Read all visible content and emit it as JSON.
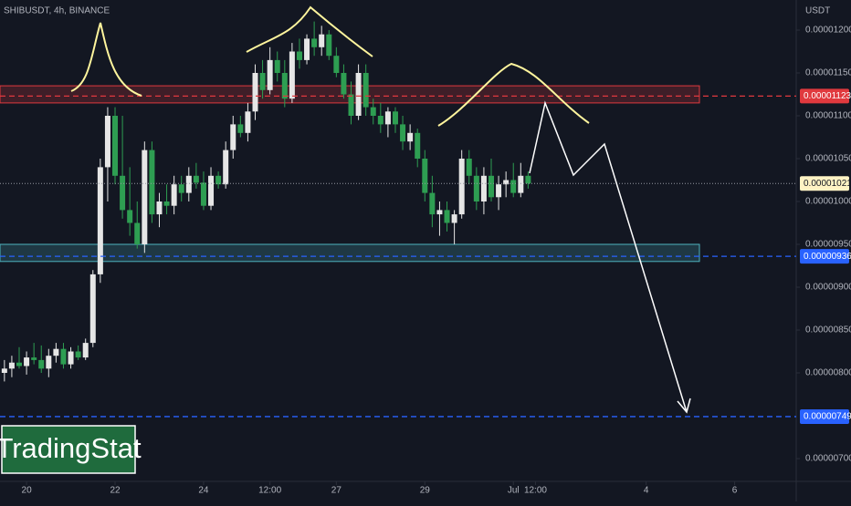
{
  "chart_data": {
    "type": "candlestick",
    "title": "SHIBUSDT, 4h, BINANCE",
    "y_unit": "USDT",
    "watermark": "TradingStat",
    "up_color": "#e6e6e6",
    "down_color": "#2e9e52",
    "xlim": [
      -3.6,
      104.1
    ],
    "xticks": [
      {
        "value": 0,
        "label": "20"
      },
      {
        "value": 12,
        "label": "22"
      },
      {
        "value": 24,
        "label": "24"
      },
      {
        "value": 33,
        "label": "12:00"
      },
      {
        "value": 42,
        "label": "27"
      },
      {
        "value": 54,
        "label": "29"
      },
      {
        "value": 66,
        "label": "Jul"
      },
      {
        "value": 69,
        "label": "12:00"
      },
      {
        "value": 84,
        "label": "4"
      },
      {
        "value": 96,
        "label": "6"
      }
    ],
    "ylim": [
      6.766e-06,
      1.2351e-05
    ],
    "yticks": [
      {
        "value": 1.2e-05,
        "label": "0.00001200"
      },
      {
        "value": 1.15e-05,
        "label": "0.00001150"
      },
      {
        "value": 1.1e-05,
        "label": "0.00001100"
      },
      {
        "value": 1.05e-05,
        "label": "0.00001050"
      },
      {
        "value": 1e-05,
        "label": "0.00001000"
      },
      {
        "value": 9.5e-06,
        "label": "0.00000950"
      },
      {
        "value": 9e-06,
        "label": "0.00000900"
      },
      {
        "value": 8.5e-06,
        "label": "0.00000850"
      },
      {
        "value": 8e-06,
        "label": "0.00000800"
      },
      {
        "value": 7e-06,
        "label": "0.00000700"
      }
    ],
    "x": [
      -3,
      -2,
      -1,
      0,
      1,
      2,
      3,
      4,
      5,
      6,
      7,
      8,
      9,
      10,
      11,
      12,
      13,
      14,
      15,
      16,
      17,
      18,
      19,
      20,
      21,
      22,
      23,
      24,
      25,
      26,
      27,
      28,
      29,
      30,
      31,
      32,
      33,
      34,
      35,
      36,
      37,
      38,
      39,
      40,
      41,
      42,
      43,
      44,
      45,
      46,
      47,
      48,
      49,
      50,
      51,
      52,
      53,
      54,
      55,
      56,
      57,
      58,
      59,
      60,
      61,
      62,
      63,
      64,
      65,
      66,
      67,
      68
    ],
    "open": [
      8e-06,
      8.05e-06,
      8.12e-06,
      8.08e-06,
      8.18e-06,
      8.15e-06,
      8.05e-06,
      8.2e-06,
      8.28e-06,
      8.1e-06,
      8.25e-06,
      8.18e-06,
      8.35e-06,
      9.15e-06,
      1.04e-05,
      1.1e-05,
      1.03e-05,
      9.9e-06,
      9.75e-06,
      9.5e-06,
      1.06e-05,
      9.85e-06,
      1e-05,
      9.95e-06,
      1.02e-05,
      1.01e-05,
      1.03e-05,
      1.022e-05,
      9.95e-06,
      1.03e-05,
      1.02e-05,
      1.06e-05,
      1.09e-05,
      1.08e-05,
      1.105e-05,
      1.15e-05,
      1.13e-05,
      1.165e-05,
      1.15e-05,
      1.12e-05,
      1.175e-05,
      1.165e-05,
      1.19e-05,
      1.18e-05,
      1.195e-05,
      1.17e-05,
      1.15e-05,
      1.125e-05,
      1.1e-05,
      1.15e-05,
      1.11e-05,
      1.1e-05,
      1.09e-05,
      1.105e-05,
      1.09e-05,
      1.07e-05,
      1.08e-05,
      1.05e-05,
      1.01e-05,
      9.85e-06,
      9.9e-06,
      9.75e-06,
      9.85e-06,
      1.05e-05,
      1.03e-05,
      1e-05,
      1.03e-05,
      1.005e-05,
      1.02e-05,
      1.025e-05,
      1.01e-05,
      1.03e-05
    ],
    "high": [
      8.15e-06,
      8.2e-06,
      8.3e-06,
      8.25e-06,
      8.35e-06,
      8.32e-06,
      8.28e-06,
      8.35e-06,
      8.35e-06,
      8.3e-06,
      8.32e-06,
      8.4e-06,
      9.2e-06,
      1.05e-05,
      1.11e-05,
      1.11e-05,
      1.1e-05,
      1.04e-05,
      1e-05,
      1.07e-05,
      1.07e-05,
      1.01e-05,
      1.02e-05,
      1.03e-05,
      1.03e-05,
      1.04e-05,
      1.045e-05,
      1.035e-05,
      1.04e-05,
      1.035e-05,
      1.07e-05,
      1.1e-05,
      1.1e-05,
      1.115e-05,
      1.16e-05,
      1.165e-05,
      1.18e-05,
      1.175e-05,
      1.165e-05,
      1.185e-05,
      1.19e-05,
      1.195e-05,
      1.21e-05,
      1.205e-05,
      1.2e-05,
      1.18e-05,
      1.16e-05,
      1.14e-05,
      1.16e-05,
      1.16e-05,
      1.12e-05,
      1.115e-05,
      1.11e-05,
      1.11e-05,
      1.1e-05,
      1.09e-05,
      1.085e-05,
      1.06e-05,
      1.03e-05,
      1e-05,
      1e-05,
      9.9e-06,
      1.06e-05,
      1.06e-05,
      1.04e-05,
      1.04e-05,
      1.05e-05,
      1.03e-05,
      1.035e-05,
      1.045e-05,
      1.045e-05,
      1.035e-05
    ],
    "low": [
      7.9e-06,
      7.95e-06,
      8.05e-06,
      7.98e-06,
      8.1e-06,
      8e-06,
      7.95e-06,
      8.12e-06,
      8.05e-06,
      8.05e-06,
      8.15e-06,
      8.15e-06,
      8.3e-06,
      9.05e-06,
      1e-05,
      1.02e-05,
      9.8e-06,
      9.6e-06,
      9.45e-06,
      9.4e-06,
      9.75e-06,
      9.7e-06,
      9.85e-06,
      9.85e-06,
      1e-05,
      1e-05,
      1.015e-05,
      9.9e-06,
      9.9e-06,
      1.015e-05,
      1.015e-05,
      1.05e-05,
      1.075e-05,
      1.07e-05,
      1.095e-05,
      1.12e-05,
      1.125e-05,
      1.14e-05,
      1.11e-05,
      1.115e-05,
      1.155e-05,
      1.16e-05,
      1.17e-05,
      1.17e-05,
      1.165e-05,
      1.145e-05,
      1.12e-05,
      1.09e-05,
      1.095e-05,
      1.1e-05,
      1.09e-05,
      1.08e-05,
      1.075e-05,
      1.08e-05,
      1.06e-05,
      1.06e-05,
      1.04e-05,
      1e-05,
      9.7e-06,
      9.6e-06,
      9.65e-06,
      9.5e-06,
      9.8e-06,
      1.02e-05,
      9.9e-06,
      9.85e-06,
      1e-05,
      9.9e-06,
      1.005e-05,
      1.005e-05,
      1.005e-05,
      1.015e-05
    ],
    "close": [
      8.05e-06,
      8.12e-06,
      8.08e-06,
      8.18e-06,
      8.15e-06,
      8.05e-06,
      8.2e-06,
      8.28e-06,
      8.1e-06,
      8.25e-06,
      8.18e-06,
      8.35e-06,
      9.15e-06,
      1.04e-05,
      1.1e-05,
      1.03e-05,
      9.9e-06,
      9.75e-06,
      9.5e-06,
      1.06e-05,
      9.85e-06,
      1e-05,
      9.95e-06,
      1.02e-05,
      1.01e-05,
      1.03e-05,
      1.022e-05,
      9.95e-06,
      1.03e-05,
      1.02e-05,
      1.06e-05,
      1.09e-05,
      1.08e-05,
      1.105e-05,
      1.15e-05,
      1.13e-05,
      1.165e-05,
      1.15e-05,
      1.12e-05,
      1.175e-05,
      1.165e-05,
      1.19e-05,
      1.18e-05,
      1.195e-05,
      1.17e-05,
      1.15e-05,
      1.125e-05,
      1.1e-05,
      1.15e-05,
      1.11e-05,
      1.1e-05,
      1.09e-05,
      1.105e-05,
      1.09e-05,
      1.07e-05,
      1.08e-05,
      1.05e-05,
      1.01e-05,
      9.85e-06,
      9.9e-06,
      9.75e-06,
      9.85e-06,
      1.05e-05,
      1.03e-05,
      1e-05,
      1.03e-05,
      1.005e-05,
      1.02e-05,
      1.025e-05,
      1.01e-05,
      1.03e-05,
      1.021e-05
    ],
    "zones": [
      {
        "from": 1.115e-05,
        "to": 1.135e-05,
        "color": "#e0393e"
      },
      {
        "from": 9.3e-06,
        "to": 9.5e-06,
        "color": "#4fb3bf"
      }
    ],
    "levels": [
      {
        "value": 1.123e-05,
        "label": "0.00001123",
        "color": "#e0393e"
      },
      {
        "value": 9.36e-06,
        "label": "0.00000936",
        "color": "#2962ff"
      },
      {
        "value": 7.49e-06,
        "label": "0.00000749",
        "color": "#2962ff"
      }
    ],
    "last_price": {
      "value": 1.021e-05,
      "label": "0.00001021",
      "color": "#fff3c4"
    }
  }
}
